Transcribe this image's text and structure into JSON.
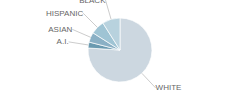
{
  "chart_data": {
    "type": "pie",
    "categories": [
      "WHITE",
      "A.I.",
      "ASIAN",
      "HISPANIC",
      "BLACK"
    ],
    "values": [
      76,
      3,
      5,
      7,
      9
    ],
    "colors": [
      "#ccd7e0",
      "#6a9ab0",
      "#8ab0c5",
      "#9fc4d4",
      "#b8d2de"
    ]
  }
}
